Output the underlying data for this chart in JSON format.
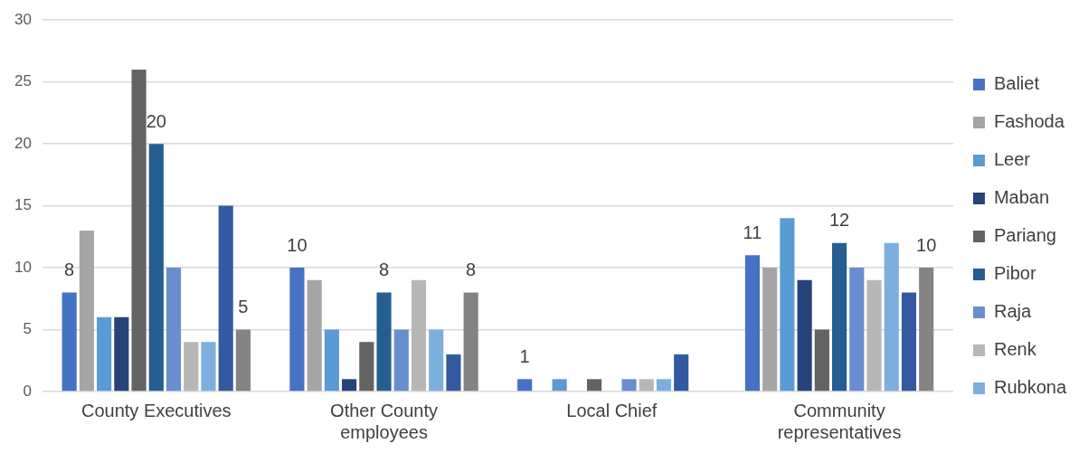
{
  "chart_data": {
    "type": "bar",
    "categories": [
      "County Executives",
      "Other County employees",
      "Local Chief",
      "Community representatives"
    ],
    "series": [
      {
        "name": "Baliet",
        "color": "#4472c4",
        "values": [
          8,
          10,
          1,
          11
        ],
        "value_labels": [
          "8",
          "10",
          "1",
          "11"
        ]
      },
      {
        "name": "Fashoda",
        "color": "#a5a5a5",
        "values": [
          13,
          9,
          0,
          10
        ]
      },
      {
        "name": "Leer",
        "color": "#5b9bd5",
        "values": [
          6,
          5,
          1,
          14
        ]
      },
      {
        "name": "Maban",
        "color": "#264478",
        "values": [
          6,
          1,
          0,
          9
        ]
      },
      {
        "name": "Pariang",
        "color": "#636363",
        "values": [
          26,
          4,
          1,
          5
        ]
      },
      {
        "name": "Pibor",
        "color": "#255e91",
        "values": [
          20,
          8,
          0,
          12
        ],
        "value_labels": [
          "20",
          "8",
          null,
          "12"
        ]
      },
      {
        "name": "Raja",
        "color": "#698ed0",
        "values": [
          10,
          5,
          1,
          10
        ]
      },
      {
        "name": "Renk",
        "color": "#b7b7b7",
        "values": [
          4,
          9,
          1,
          9
        ]
      },
      {
        "name": "Rubkona",
        "color": "#7cafdd",
        "values": [
          4,
          5,
          1,
          12
        ]
      },
      {
        "color": "#335aa1",
        "values": [
          15,
          3,
          3,
          8
        ]
      },
      {
        "color": "#848484",
        "values": [
          5,
          8,
          0,
          10
        ],
        "value_labels": [
          "5",
          "8",
          null,
          "10"
        ]
      }
    ],
    "ylim": [
      0,
      30
    ],
    "yticks": [
      0,
      5,
      10,
      15,
      20,
      25,
      30
    ],
    "grid": "y",
    "legend": "right"
  }
}
